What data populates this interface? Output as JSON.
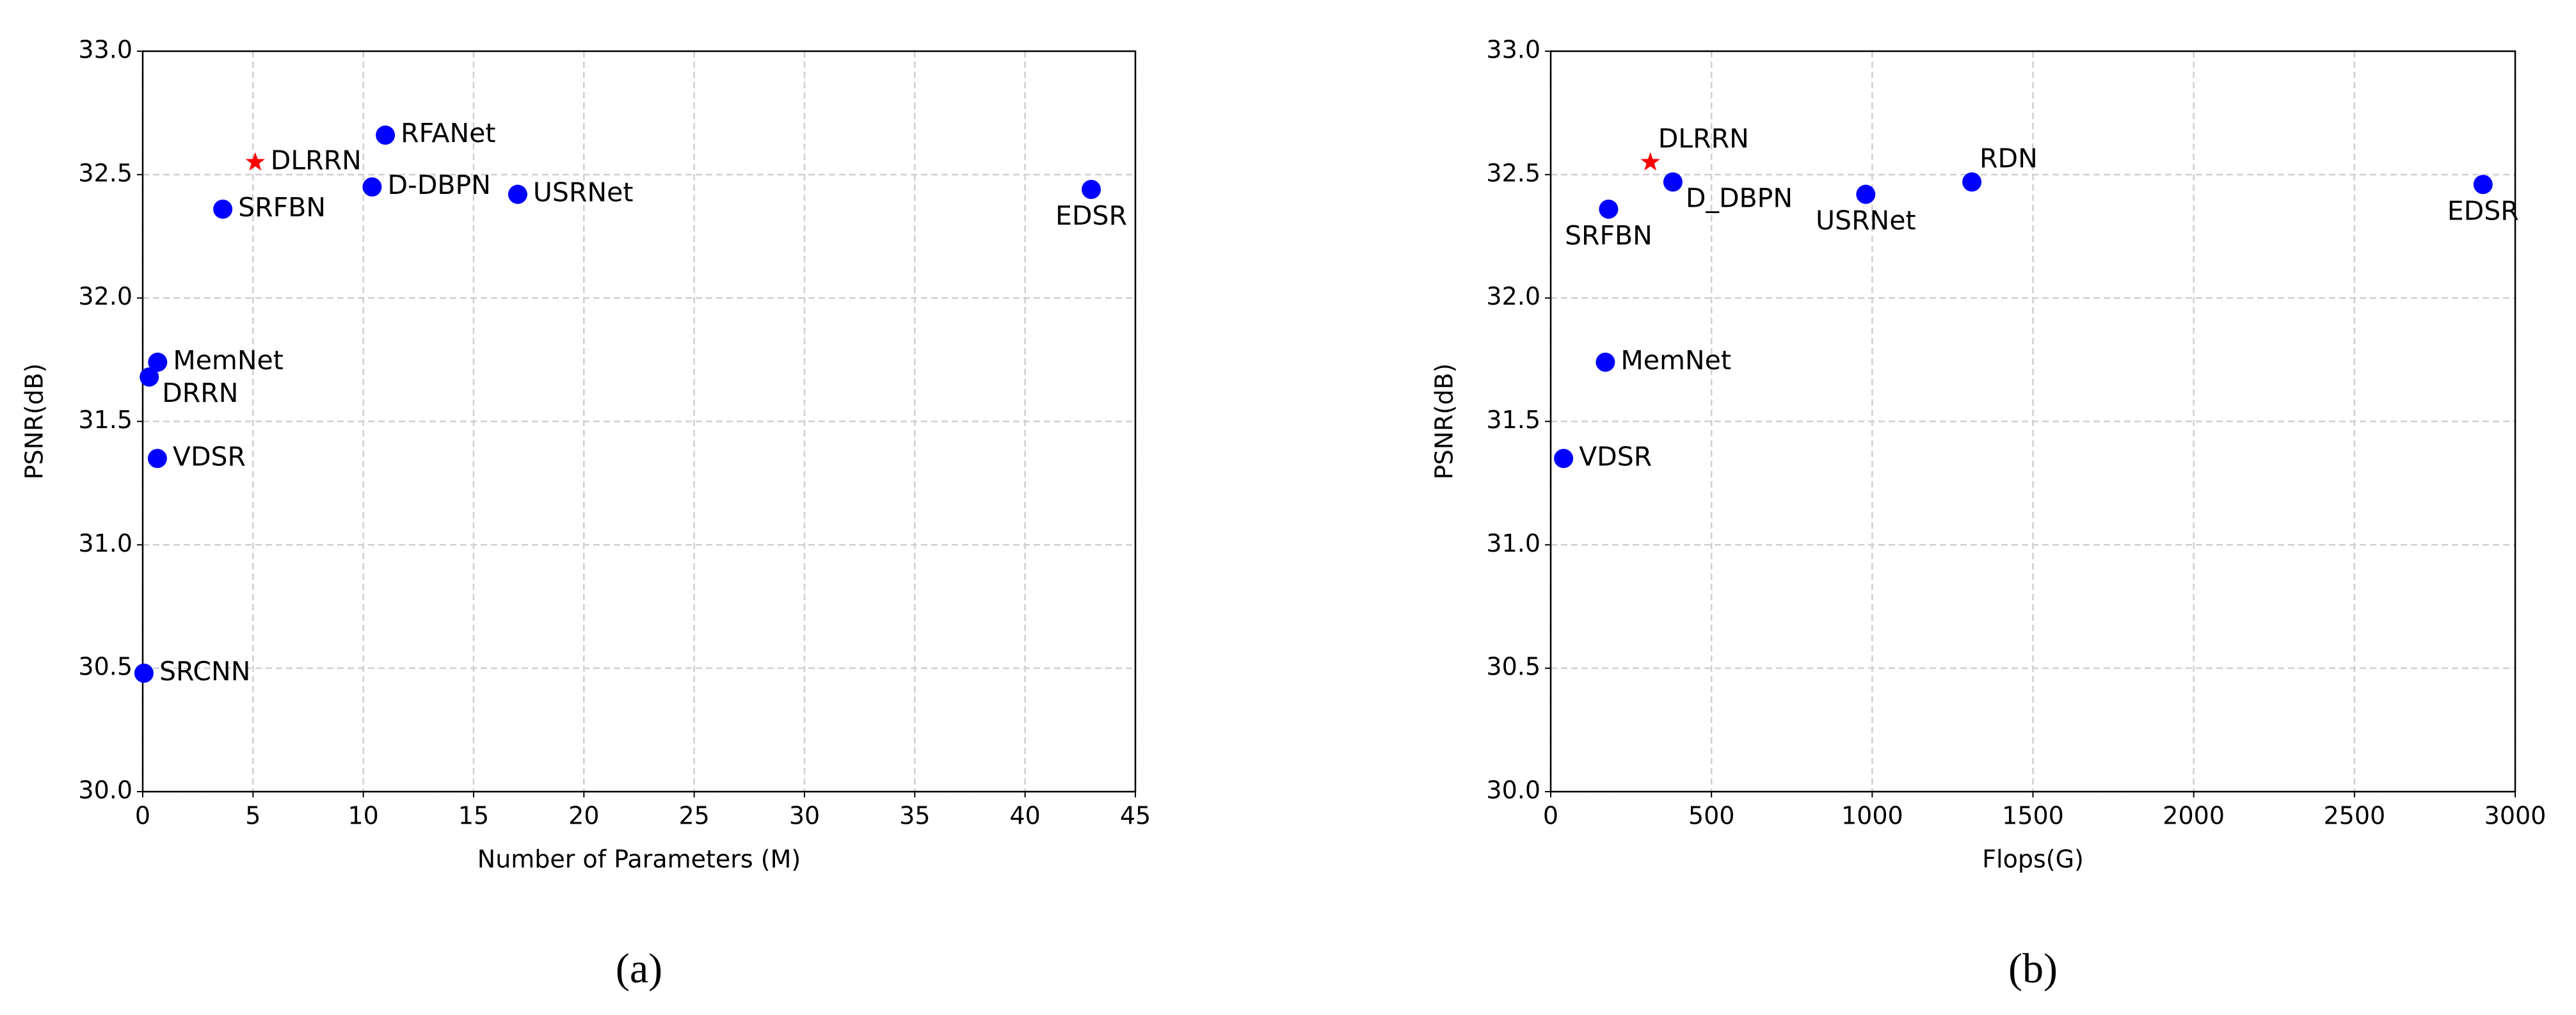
{
  "chart_data": [
    {
      "type": "scatter",
      "caption": "(a)",
      "x_label": "Number of Parameters (M)",
      "y_label": "PSNR(dB)",
      "xlim": [
        0,
        45
      ],
      "xticks": [
        0,
        5,
        10,
        15,
        20,
        25,
        30,
        35,
        40,
        45
      ],
      "ylim": [
        30,
        33
      ],
      "yticks": [
        {
          "value": 30,
          "label": "30.0"
        },
        30.5,
        {
          "value": 31,
          "label": "31.0"
        },
        31.5,
        {
          "value": 32,
          "label": "32.0"
        },
        32.5,
        {
          "value": 33,
          "label": "33.0"
        }
      ],
      "grid": true,
      "points": [
        {
          "label": "SRCNN",
          "x": 0.057,
          "y": 30.48,
          "color": "#0000ff",
          "marker": "circle"
        },
        {
          "label": "VDSR",
          "x": 0.665,
          "y": 31.35,
          "color": "#0000ff",
          "marker": "circle"
        },
        {
          "label": "DRRN",
          "x": 0.297,
          "y": 31.68,
          "color": "#0000ff",
          "marker": "circle"
        },
        {
          "label": "MemNet",
          "x": 0.677,
          "y": 31.74,
          "color": "#0000ff",
          "marker": "circle"
        },
        {
          "label": "SRFBN",
          "x": 3.63,
          "y": 32.36,
          "color": "#0000ff",
          "marker": "circle"
        },
        {
          "label": "D-DBPN",
          "x": 10.4,
          "y": 32.45,
          "color": "#0000ff",
          "marker": "circle"
        },
        {
          "label": "RFANet",
          "x": 11,
          "y": 32.66,
          "color": "#0000ff",
          "marker": "circle"
        },
        {
          "label": "USRNet",
          "x": 17,
          "y": 32.42,
          "color": "#0000ff",
          "marker": "circle"
        },
        {
          "label": "EDSR",
          "x": 43,
          "y": 32.44,
          "color": "#0000ff",
          "marker": "circle"
        },
        {
          "label": "DLRRN",
          "x": 5.1,
          "y": 32.55,
          "color": "#ff0000",
          "marker": "star"
        }
      ]
    },
    {
      "type": "scatter",
      "caption": "(b)",
      "x_label": "Flops(G)",
      "y_label": "PSNR(dB)",
      "xlim": [
        0,
        3000
      ],
      "xticks": [
        0,
        500,
        1000,
        1500,
        2000,
        2500,
        3000
      ],
      "ylim": [
        30,
        33
      ],
      "yticks": [
        {
          "value": 30,
          "label": "30.0"
        },
        30.5,
        {
          "value": 31,
          "label": "31.0"
        },
        31.5,
        {
          "value": 32,
          "label": "32.0"
        },
        32.5,
        {
          "value": 33,
          "label": "33.0"
        }
      ],
      "grid": true,
      "points": [
        {
          "label": "VDSR",
          "x": 40,
          "y": 31.35,
          "color": "#0000ff",
          "marker": "circle"
        },
        {
          "label": "MemNet",
          "x": 170,
          "y": 31.74,
          "color": "#0000ff",
          "marker": "circle"
        },
        {
          "label": "SRFBN",
          "x": 180,
          "y": 32.36,
          "color": "#0000ff",
          "marker": "circle"
        },
        {
          "label": "D_DBPN",
          "x": 380,
          "y": 32.47,
          "color": "#0000ff",
          "marker": "circle"
        },
        {
          "label": "USRNet",
          "x": 980,
          "y": 32.42,
          "color": "#0000ff",
          "marker": "circle"
        },
        {
          "label": "RDN",
          "x": 1310,
          "y": 32.47,
          "color": "#0000ff",
          "marker": "circle"
        },
        {
          "label": "EDSR",
          "x": 2900,
          "y": 32.46,
          "color": "#0000ff",
          "marker": "circle"
        },
        {
          "label": "DLRRN",
          "x": 310,
          "y": 32.55,
          "color": "#ff0000",
          "marker": "star"
        }
      ]
    }
  ]
}
